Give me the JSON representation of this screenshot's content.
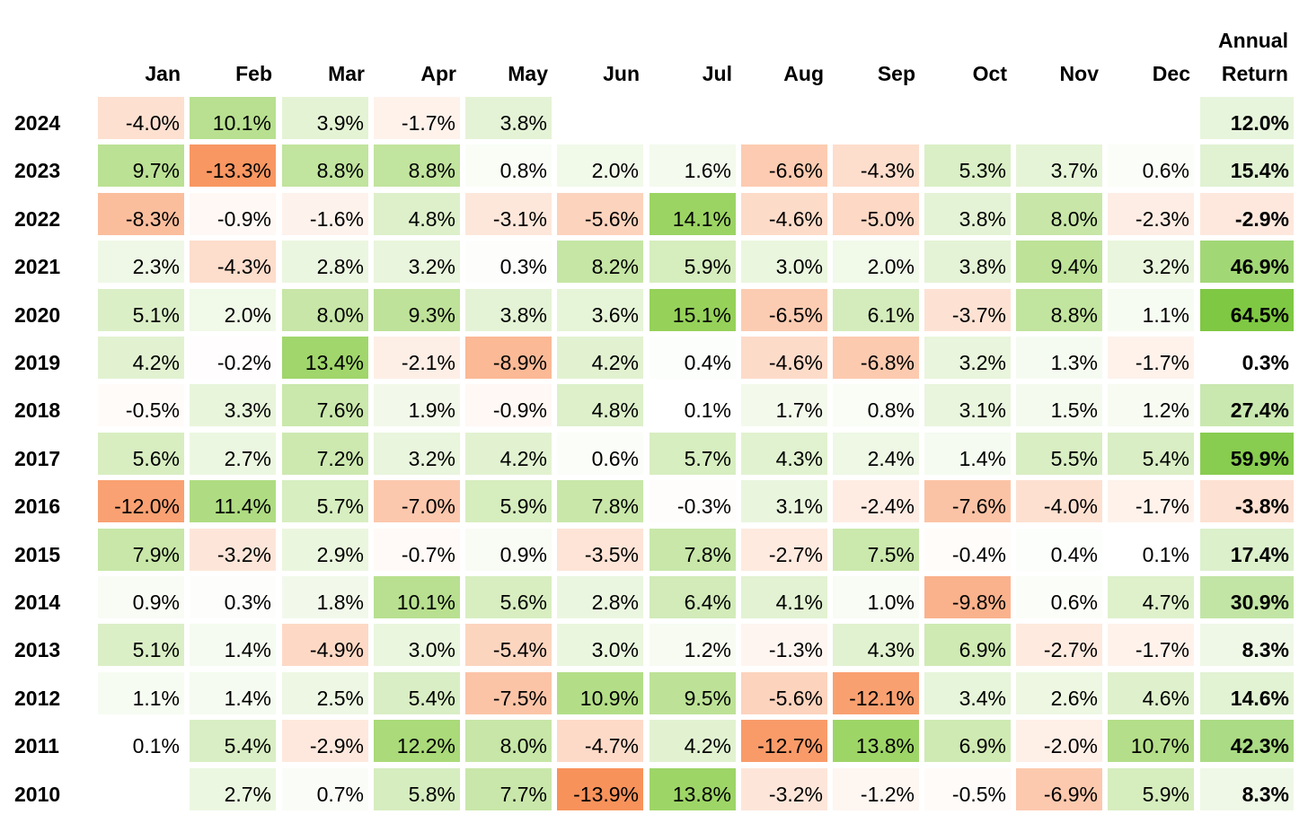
{
  "chart_data": {
    "type": "heatmap",
    "columns": [
      "Jan",
      "Feb",
      "Mar",
      "Apr",
      "May",
      "Jun",
      "Jul",
      "Aug",
      "Sep",
      "Oct",
      "Nov",
      "Dec"
    ],
    "annual_header": [
      "Annual",
      "Return"
    ],
    "rows": [
      {
        "year": "2024",
        "values": [
          -4.0,
          10.1,
          3.9,
          -1.7,
          3.8,
          null,
          null,
          null,
          null,
          null,
          null,
          null
        ],
        "annual": 12.0
      },
      {
        "year": "2023",
        "values": [
          9.7,
          -13.3,
          8.8,
          8.8,
          0.8,
          2.0,
          1.6,
          -6.6,
          -4.3,
          5.3,
          3.7,
          0.6
        ],
        "annual": 15.4
      },
      {
        "year": "2022",
        "values": [
          -8.3,
          -0.9,
          -1.6,
          4.8,
          -3.1,
          -5.6,
          14.1,
          -4.6,
          -5.0,
          3.8,
          8.0,
          -2.3
        ],
        "annual": -2.9
      },
      {
        "year": "2021",
        "values": [
          2.3,
          -4.3,
          2.8,
          3.2,
          0.3,
          8.2,
          5.9,
          3.0,
          2.0,
          3.8,
          9.4,
          3.2
        ],
        "annual": 46.9
      },
      {
        "year": "2020",
        "values": [
          5.1,
          2.0,
          8.0,
          9.3,
          3.8,
          3.6,
          15.1,
          -6.5,
          6.1,
          -3.7,
          8.8,
          1.1
        ],
        "annual": 64.5
      },
      {
        "year": "2019",
        "values": [
          4.2,
          -0.2,
          13.4,
          -2.1,
          -8.9,
          4.2,
          0.4,
          -4.6,
          -6.8,
          3.2,
          1.3,
          -1.7
        ],
        "annual": 0.3
      },
      {
        "year": "2018",
        "values": [
          -0.5,
          3.3,
          7.6,
          1.9,
          -0.9,
          4.8,
          0.1,
          1.7,
          0.8,
          3.1,
          1.5,
          1.2
        ],
        "annual": 27.4
      },
      {
        "year": "2017",
        "values": [
          5.6,
          2.7,
          7.2,
          3.2,
          4.2,
          0.6,
          5.7,
          4.3,
          2.4,
          1.4,
          5.5,
          5.4
        ],
        "annual": 59.9
      },
      {
        "year": "2016",
        "values": [
          -12.0,
          11.4,
          5.7,
          -7.0,
          5.9,
          7.8,
          -0.3,
          3.1,
          -2.4,
          -7.6,
          -4.0,
          -1.7
        ],
        "annual": -3.8
      },
      {
        "year": "2015",
        "values": [
          7.9,
          -3.2,
          2.9,
          -0.7,
          0.9,
          -3.5,
          7.8,
          -2.7,
          7.5,
          -0.4,
          0.4,
          0.1
        ],
        "annual": 17.4
      },
      {
        "year": "2014",
        "values": [
          0.9,
          0.3,
          1.8,
          10.1,
          5.6,
          2.8,
          6.4,
          4.1,
          1.0,
          -9.8,
          0.6,
          4.7
        ],
        "annual": 30.9
      },
      {
        "year": "2013",
        "values": [
          5.1,
          1.4,
          -4.9,
          3.0,
          -5.4,
          3.0,
          1.2,
          -1.3,
          4.3,
          6.9,
          -2.7,
          -1.7
        ],
        "annual": 8.3
      },
      {
        "year": "2012",
        "values": [
          1.1,
          1.4,
          2.5,
          5.4,
          -7.5,
          10.9,
          9.5,
          -5.6,
          -12.1,
          3.4,
          2.6,
          4.6
        ],
        "annual": 14.6
      },
      {
        "year": "2011",
        "values": [
          0.1,
          5.4,
          -2.9,
          12.2,
          8.0,
          -4.7,
          4.2,
          -12.7,
          13.8,
          6.9,
          -2.0,
          10.7
        ],
        "annual": 42.3
      },
      {
        "year": "2010",
        "values": [
          null,
          2.7,
          0.7,
          5.8,
          7.7,
          -13.9,
          13.8,
          -3.2,
          -1.2,
          -0.5,
          -6.9,
          5.9
        ],
        "annual": 8.3
      }
    ],
    "color_scale": {
      "negative": "#f8915a",
      "zero": "#ffffff",
      "positive": "#96d15a",
      "annual_positive": "#7fc843"
    }
  }
}
